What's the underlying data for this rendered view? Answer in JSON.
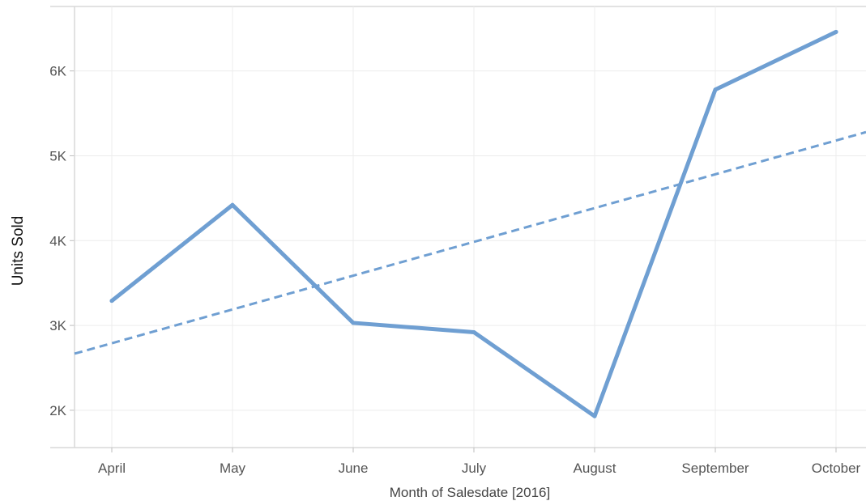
{
  "chart_data": {
    "type": "line",
    "title": "",
    "xlabel": "Month of Salesdate [2016]",
    "ylabel": "Units Sold",
    "categories": [
      "April",
      "May",
      "June",
      "July",
      "August",
      "September",
      "October"
    ],
    "series": [
      {
        "values": [
          3290,
          4420,
          3030,
          2920,
          1930,
          5780,
          6460
        ]
      }
    ],
    "trend_line": {
      "style": "dashed",
      "start_value": 2790,
      "end_value": 5180
    },
    "y_ticks": [
      {
        "value": 2000,
        "label": "2K"
      },
      {
        "value": 3000,
        "label": "3K"
      },
      {
        "value": 4000,
        "label": "4K"
      },
      {
        "value": 5000,
        "label": "5K"
      },
      {
        "value": 6000,
        "label": "6K"
      }
    ],
    "ylim": [
      1560,
      6760
    ],
    "grid": true,
    "colors": {
      "line": "#6f9fd2",
      "grid": "#ececec",
      "axis": "#d8d8d8"
    }
  }
}
